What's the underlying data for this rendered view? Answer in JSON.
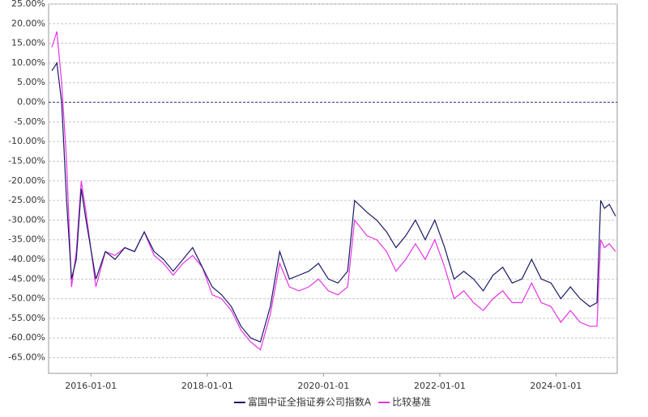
{
  "chart_data": {
    "type": "line",
    "x": [
      "2015-05-01",
      "2015-06-01",
      "2015-07-01",
      "2015-08-01",
      "2015-09-01",
      "2015-10-01",
      "2015-11-01",
      "2015-12-01",
      "2016-02-01",
      "2016-04-01",
      "2016-06-01",
      "2016-08-01",
      "2016-10-01",
      "2016-12-01",
      "2017-02-01",
      "2017-04-01",
      "2017-06-01",
      "2017-08-01",
      "2017-10-01",
      "2017-12-01",
      "2018-02-01",
      "2018-04-01",
      "2018-06-01",
      "2018-08-01",
      "2018-10-01",
      "2018-12-01",
      "2019-02-01",
      "2019-04-01",
      "2019-06-01",
      "2019-08-01",
      "2019-10-01",
      "2019-12-01",
      "2020-02-01",
      "2020-04-01",
      "2020-06-01",
      "2020-07-15",
      "2020-10-01",
      "2020-12-01",
      "2021-02-01",
      "2021-04-01",
      "2021-06-01",
      "2021-08-01",
      "2021-10-01",
      "2021-12-01",
      "2022-02-01",
      "2022-04-01",
      "2022-06-01",
      "2022-08-01",
      "2022-10-01",
      "2022-12-01",
      "2023-02-01",
      "2023-04-01",
      "2023-06-01",
      "2023-08-01",
      "2023-10-01",
      "2023-12-01",
      "2024-02-01",
      "2024-04-01",
      "2024-06-01",
      "2024-08-01",
      "2024-09-15",
      "2024-10-08",
      "2024-11-01",
      "2024-12-01",
      "2025-01-10"
    ],
    "series": [
      {
        "name": "富国中证全指证券公司指数A",
        "color": "#1a1a66",
        "values": [
          8,
          10,
          0,
          -25,
          -45,
          -40,
          -22,
          -30,
          -45,
          -38,
          -40,
          -37,
          -38,
          -33,
          -38,
          -40,
          -43,
          -40,
          -37,
          -42,
          -47,
          -49,
          -52,
          -57,
          -60,
          -61,
          -52,
          -38,
          -45,
          -44,
          -43,
          -41,
          -45,
          -46,
          -43,
          -25,
          -28,
          -30,
          -33,
          -37,
          -34,
          -30,
          -35,
          -30,
          -37,
          -45,
          -43,
          -45,
          -48,
          -44,
          -42,
          -46,
          -45,
          -40,
          -45,
          -46,
          -50,
          -47,
          -50,
          -52,
          -51,
          -25,
          -27,
          -26,
          -29
        ]
      },
      {
        "name": "比较基准",
        "color": "#e633e6",
        "values": [
          14,
          18,
          5,
          -15,
          -47,
          -38,
          -20,
          -28,
          -47,
          -38,
          -39,
          -37,
          -38,
          -33,
          -39,
          -41,
          -44,
          -41,
          -39,
          -42,
          -49,
          -50,
          -53,
          -58,
          -61,
          -63,
          -54,
          -41,
          -47,
          -48,
          -47,
          -45,
          -48,
          -49,
          -47,
          -30,
          -34,
          -35,
          -38,
          -43,
          -40,
          -36,
          -40,
          -35,
          -42,
          -50,
          -48,
          -51,
          -53,
          -50,
          -48,
          -51,
          -51,
          -46,
          -51,
          -52,
          -56,
          -53,
          -56,
          -57,
          -57,
          -35,
          -37,
          -36,
          -38
        ]
      }
    ],
    "xlim": [
      "2015-04-10",
      "2025-01-20"
    ],
    "xticks": [
      "2016-01-01",
      "2018-01-01",
      "2020-01-01",
      "2022-01-01",
      "2024-01-01"
    ],
    "ylim": [
      -69,
      25
    ],
    "yticks": [
      {
        "value": 25,
        "label": "25.00%"
      },
      {
        "value": 20,
        "label": "20.00%"
      },
      {
        "value": 15,
        "label": "15.00%"
      },
      {
        "value": 10,
        "label": "10.00%"
      },
      {
        "value": 5,
        "label": "5.00%"
      },
      {
        "value": 0,
        "label": "0.00%"
      },
      {
        "value": -5,
        "label": "-5.00%"
      },
      {
        "value": -10,
        "label": "-10.00%"
      },
      {
        "value": -15,
        "label": "-15.00%"
      },
      {
        "value": -20,
        "label": "-20.00%"
      },
      {
        "value": -25,
        "label": "-25.00%"
      },
      {
        "value": -30,
        "label": "-30.00%"
      },
      {
        "value": -35,
        "label": "-35.00%"
      },
      {
        "value": -40,
        "label": "-40.00%"
      },
      {
        "value": -45,
        "label": "-45.00%"
      },
      {
        "value": -50,
        "label": "-50.00%"
      },
      {
        "value": -55,
        "label": "-55.00%"
      },
      {
        "value": -60,
        "label": "-60.00%"
      },
      {
        "value": -65,
        "label": "-65.00%"
      }
    ],
    "grid": true
  }
}
